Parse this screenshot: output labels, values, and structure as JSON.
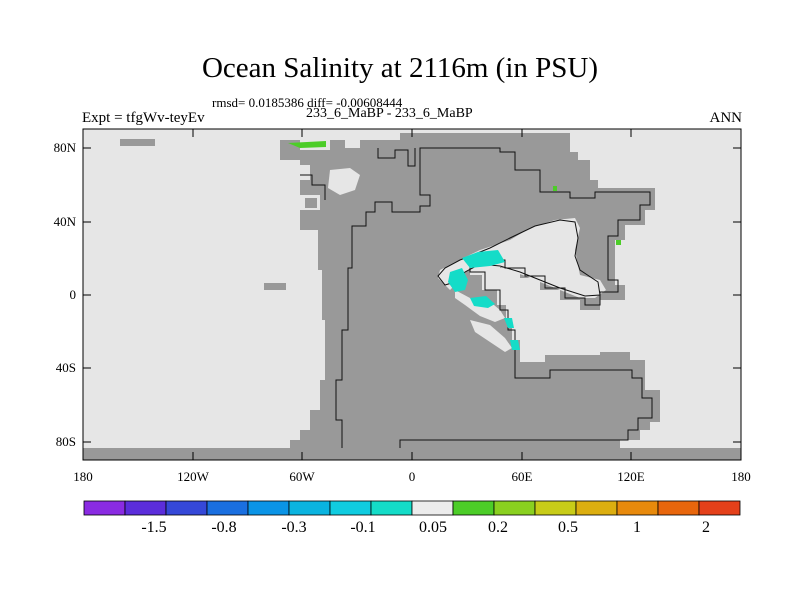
{
  "header": {
    "title": "Ocean Salinity at 2116m (in PSU)",
    "stats": "rmsd= 0.0185386 diff= -0.00608444",
    "subtitle": "233_6_MaBP - 233_6_MaBP",
    "experiment": "Expt = tfgWv-teyEv",
    "season": "ANN"
  },
  "axes": {
    "x_ticks": [
      "180",
      "120W",
      "60W",
      "0",
      "60E",
      "120E",
      "180"
    ],
    "y_ticks": [
      "80N",
      "40N",
      "0",
      "40S",
      "80S"
    ]
  },
  "colorbar": {
    "colors": [
      "#8a2be2",
      "#5b2ddb",
      "#3548d8",
      "#1a6fe0",
      "#0a94e6",
      "#0ab4e0",
      "#10cce0",
      "#14dcc8",
      "#ececec",
      "#4ccd28",
      "#8ad020",
      "#c8cc18",
      "#dcae10",
      "#e88a0c",
      "#e8660c",
      "#e4401a"
    ],
    "labels": [
      "-1.5",
      "-0.8",
      "-0.3",
      "-0.1",
      "0.05",
      "0.2",
      "0.5",
      "1",
      "2"
    ]
  },
  "legend_colors": {
    "land": "#999999",
    "ocean_no_diff": "#e6e6e6"
  }
}
